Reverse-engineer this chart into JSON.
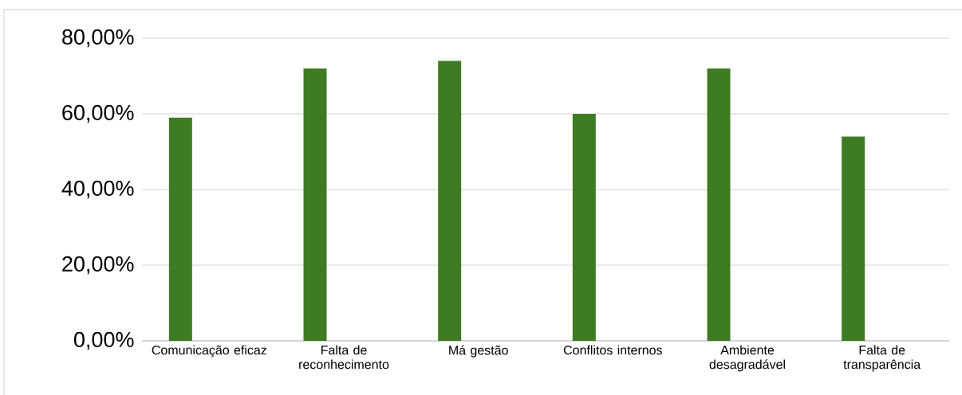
{
  "chart_data": {
    "type": "bar",
    "categories": [
      "Comunicação eficaz",
      "Falta de reconhecimento",
      "Má gestão",
      "Conflitos internos",
      "Ambiente desagradável",
      "Falta de transparência"
    ],
    "values": [
      59,
      72,
      74,
      60,
      72,
      54
    ],
    "color": "#3e7b22",
    "ylim": [
      0,
      80
    ],
    "yticks": [
      {
        "value": 0,
        "label": "0,00%"
      },
      {
        "value": 20,
        "label": "20,00%"
      },
      {
        "value": 40,
        "label": "40,00%"
      },
      {
        "value": 60,
        "label": "60,00%"
      },
      {
        "value": 80,
        "label": "80,00%"
      }
    ],
    "grid": "y"
  }
}
